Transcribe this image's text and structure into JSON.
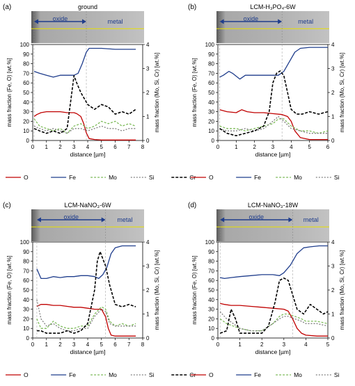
{
  "figure": {
    "micro_labels": {
      "oxide": "oxide",
      "metal": "metal"
    },
    "xlabel": "distance [µm]",
    "ylabel_left": "mass fraction (Fe, O) [wt.%]",
    "ylabel_right": "mass fraction (Mo, Si, Cr) [wt.%]",
    "legend": [
      {
        "name": "O",
        "color": "#c00000",
        "dash": "solid"
      },
      {
        "name": "Fe",
        "color": "#1f3d8c",
        "dash": "solid"
      },
      {
        "name": "Mo",
        "color": "#7dbb5a",
        "dash": "dashed"
      },
      {
        "name": "Si",
        "color": "#7f7f7f",
        "dash": "dotted"
      },
      {
        "name": "Cr",
        "color": "#000000",
        "dash": "dashed-bold"
      }
    ]
  },
  "chart_data": [
    {
      "type": "line",
      "panel_label": "(a)",
      "title": "ground",
      "xlim": [
        0,
        8
      ],
      "xticks": [
        0,
        1,
        2,
        3,
        4,
        5,
        6,
        7,
        8
      ],
      "ylim": [
        0,
        100
      ],
      "yticks": [
        0,
        10,
        20,
        30,
        40,
        50,
        60,
        70,
        80,
        90,
        100
      ],
      "y2lim": [
        0,
        4
      ],
      "y2ticks": [
        0,
        1,
        2,
        3,
        4
      ],
      "oxide_range": [
        0.1,
        3.9
      ],
      "series": [
        {
          "name": "O",
          "axis": "left",
          "x": [
            0.1,
            0.3,
            0.6,
            1.0,
            1.5,
            2.0,
            2.5,
            3.0,
            3.2,
            3.5,
            3.7,
            3.9,
            4.1,
            4.5,
            5.0,
            6.0,
            7.0,
            7.5
          ],
          "y": [
            25,
            27,
            29,
            30,
            30,
            30,
            29,
            29,
            28,
            25,
            18,
            8,
            2,
            1,
            0.5,
            0.5,
            0.5,
            0.5
          ]
        },
        {
          "name": "Fe",
          "axis": "left",
          "x": [
            0.1,
            0.5,
            1.0,
            1.5,
            2.0,
            2.5,
            3.0,
            3.3,
            3.6,
            3.9,
            4.1,
            4.5,
            5.0,
            6.0,
            7.0,
            7.5
          ],
          "y": [
            72,
            70,
            68,
            66,
            68,
            68,
            68,
            70,
            80,
            92,
            96,
            96,
            96,
            95,
            95,
            95
          ]
        },
        {
          "name": "Mo",
          "axis": "right",
          "x": [
            0.1,
            0.5,
            1.0,
            1.5,
            2.0,
            2.5,
            3.0,
            3.5,
            4.0,
            4.5,
            5.0,
            5.5,
            6.0,
            6.5,
            7.0,
            7.5
          ],
          "y": [
            0.9,
            0.6,
            0.5,
            0.4,
            0.5,
            0.3,
            0.6,
            0.7,
            0.5,
            0.6,
            0.8,
            0.7,
            0.8,
            0.6,
            0.7,
            0.6
          ]
        },
        {
          "name": "Si",
          "axis": "right",
          "x": [
            0.1,
            0.5,
            1.0,
            1.5,
            2.0,
            2.5,
            3.0,
            3.5,
            4.0,
            4.5,
            5.0,
            5.5,
            6.0,
            6.5,
            7.0,
            7.5
          ],
          "y": [
            0.6,
            0.5,
            0.4,
            0.5,
            0.4,
            0.3,
            0.5,
            0.5,
            0.4,
            0.5,
            0.6,
            0.5,
            0.5,
            0.4,
            0.5,
            0.5
          ]
        },
        {
          "name": "Cr",
          "axis": "right",
          "x": [
            0.1,
            0.5,
            1.0,
            1.5,
            2.0,
            2.5,
            2.8,
            3.0,
            3.2,
            3.5,
            3.8,
            4.0,
            4.5,
            5.0,
            5.5,
            6.0,
            6.5,
            7.0,
            7.5
          ],
          "y": [
            0.5,
            0.4,
            0.3,
            0.4,
            0.3,
            0.5,
            1.8,
            2.7,
            2.4,
            2.0,
            1.7,
            1.5,
            1.3,
            1.5,
            1.4,
            1.1,
            1.2,
            1.1,
            1.3
          ]
        }
      ]
    },
    {
      "type": "line",
      "panel_label": "(b)",
      "title": "LCM-H₃PO₄-6W",
      "xlim": [
        0,
        6
      ],
      "xticks": [
        0,
        1,
        2,
        3,
        4,
        5,
        6
      ],
      "ylim": [
        0,
        100
      ],
      "yticks": [
        0,
        10,
        20,
        30,
        40,
        50,
        60,
        70,
        80,
        90,
        100
      ],
      "y2lim": [
        0,
        4
      ],
      "y2ticks": [
        0,
        1,
        2,
        3,
        4
      ],
      "oxide_range": [
        0.1,
        3.5
      ],
      "series": [
        {
          "name": "O",
          "axis": "left",
          "x": [
            0.1,
            0.5,
            1.0,
            1.3,
            1.6,
            2.0,
            2.5,
            3.0,
            3.5,
            3.8,
            4.0,
            4.2,
            4.5,
            5.0,
            5.5,
            6.0
          ],
          "y": [
            32,
            30,
            29,
            32,
            30,
            29,
            29,
            28,
            27,
            25,
            20,
            10,
            3,
            1,
            1,
            1
          ]
        },
        {
          "name": "Fe",
          "axis": "left",
          "x": [
            0.1,
            0.3,
            0.6,
            0.8,
            1.2,
            1.5,
            2.0,
            2.5,
            3.0,
            3.3,
            3.6,
            3.9,
            4.2,
            4.5,
            5.0,
            5.5,
            6.0
          ],
          "y": [
            66,
            68,
            72,
            70,
            64,
            68,
            68,
            68,
            68,
            68,
            72,
            82,
            92,
            96,
            97,
            97,
            97
          ]
        },
        {
          "name": "Mo",
          "axis": "right",
          "x": [
            0.1,
            0.5,
            1.0,
            1.5,
            2.0,
            2.5,
            3.0,
            3.3,
            3.6,
            4.0,
            4.5,
            5.0,
            5.5,
            6.0
          ],
          "y": [
            0.6,
            0.5,
            0.5,
            0.4,
            0.5,
            0.6,
            0.7,
            0.9,
            0.9,
            0.6,
            0.4,
            0.4,
            0.3,
            0.4
          ]
        },
        {
          "name": "Si",
          "axis": "right",
          "x": [
            0.1,
            0.5,
            1.0,
            1.5,
            2.0,
            2.5,
            3.0,
            3.3,
            3.6,
            4.0,
            4.5,
            5.0,
            5.5,
            6.0
          ],
          "y": [
            0.5,
            0.4,
            0.4,
            0.5,
            0.4,
            0.5,
            0.8,
            1.0,
            0.8,
            0.5,
            0.4,
            0.3,
            0.3,
            0.3
          ]
        },
        {
          "name": "Cr",
          "axis": "right",
          "x": [
            0.1,
            0.5,
            1.0,
            1.5,
            2.0,
            2.5,
            2.8,
            3.0,
            3.2,
            3.4,
            3.6,
            3.8,
            4.0,
            4.3,
            4.6,
            5.0,
            5.5,
            6.0
          ],
          "y": [
            0.5,
            0.3,
            0.2,
            0.3,
            0.4,
            0.6,
            1.2,
            2.4,
            2.8,
            2.9,
            2.7,
            2.0,
            1.3,
            1.1,
            1.1,
            1.2,
            1.1,
            1.2
          ]
        }
      ]
    },
    {
      "type": "line",
      "panel_label": "(c)",
      "title": "LCM-NaNO₃-6W",
      "xlim": [
        0,
        8
      ],
      "xticks": [
        0,
        1,
        2,
        3,
        4,
        5,
        6,
        7,
        8
      ],
      "ylim": [
        0,
        100
      ],
      "yticks": [
        0,
        10,
        20,
        30,
        40,
        50,
        60,
        70,
        80,
        90,
        100
      ],
      "y2lim": [
        0,
        4
      ],
      "y2ticks": [
        0,
        1,
        2,
        3,
        4
      ],
      "oxide_range": [
        0.3,
        5.3
      ],
      "series": [
        {
          "name": "O",
          "axis": "left",
          "x": [
            0.3,
            0.6,
            1.0,
            1.5,
            2.0,
            2.5,
            3.0,
            3.5,
            4.0,
            4.5,
            5.0,
            5.3,
            5.5,
            5.7,
            6.0,
            6.5,
            7.0,
            7.5
          ],
          "y": [
            33,
            35,
            35,
            34,
            34,
            33,
            32,
            32,
            31,
            30,
            30,
            22,
            10,
            3,
            2,
            2,
            2,
            2
          ]
        },
        {
          "name": "Fe",
          "axis": "left",
          "x": [
            0.3,
            0.6,
            1.0,
            1.5,
            2.0,
            2.5,
            3.0,
            3.5,
            4.0,
            4.5,
            4.8,
            5.1,
            5.4,
            5.7,
            6.0,
            6.5,
            7.0,
            7.5
          ],
          "y": [
            72,
            62,
            62,
            64,
            63,
            64,
            64,
            65,
            65,
            64,
            62,
            66,
            74,
            88,
            94,
            96,
            96,
            96
          ]
        },
        {
          "name": "Mo",
          "axis": "right",
          "x": [
            0.3,
            0.6,
            1.0,
            1.5,
            2.0,
            2.5,
            3.0,
            3.5,
            4.0,
            4.5,
            5.0,
            5.3,
            5.6,
            6.0,
            6.5,
            7.0,
            7.5
          ],
          "y": [
            0.8,
            0.4,
            0.4,
            0.7,
            0.5,
            0.4,
            0.4,
            0.5,
            0.5,
            1.0,
            1.3,
            1.2,
            0.7,
            0.5,
            0.6,
            0.5,
            0.6
          ]
        },
        {
          "name": "Si",
          "axis": "right",
          "x": [
            0.3,
            0.6,
            1.0,
            1.5,
            2.0,
            2.5,
            3.0,
            3.5,
            4.0,
            4.5,
            5.0,
            5.3,
            5.6,
            6.0,
            6.5,
            7.0,
            7.5
          ],
          "y": [
            1.6,
            0.8,
            0.5,
            0.6,
            0.4,
            0.3,
            0.3,
            0.4,
            0.4,
            0.9,
            1.2,
            1.1,
            0.6,
            0.5,
            0.5,
            0.5,
            0.5
          ]
        },
        {
          "name": "Cr",
          "axis": "right",
          "x": [
            0.3,
            0.6,
            1.0,
            1.5,
            2.0,
            2.5,
            3.0,
            3.5,
            4.0,
            4.5,
            4.7,
            4.9,
            5.1,
            5.3,
            5.6,
            6.0,
            6.5,
            7.0,
            7.5
          ],
          "y": [
            0.3,
            0.3,
            0.2,
            0.2,
            0.2,
            0.3,
            0.2,
            0.3,
            0.6,
            2.0,
            3.2,
            3.6,
            3.3,
            3.0,
            2.2,
            1.4,
            1.3,
            1.4,
            1.3
          ]
        }
      ]
    },
    {
      "type": "line",
      "panel_label": "(d)",
      "title": "LCM-NaNO₃-18W",
      "xlim": [
        0,
        5
      ],
      "xticks": [
        0,
        1,
        2,
        3,
        4,
        5
      ],
      "ylim": [
        0,
        100
      ],
      "yticks": [
        0,
        10,
        20,
        30,
        40,
        50,
        60,
        70,
        80,
        90,
        100
      ],
      "y2lim": [
        0,
        4
      ],
      "y2ticks": [
        0,
        1,
        2,
        3,
        4
      ],
      "oxide_range": [
        0.1,
        3.4
      ],
      "series": [
        {
          "name": "O",
          "axis": "left",
          "x": [
            0.1,
            0.3,
            0.6,
            1.0,
            1.5,
            2.0,
            2.5,
            3.0,
            3.2,
            3.4,
            3.6,
            3.8,
            4.0,
            4.5,
            5.0
          ],
          "y": [
            36,
            35,
            34,
            34,
            33,
            32,
            31,
            30,
            28,
            20,
            10,
            5,
            3,
            2,
            2
          ]
        },
        {
          "name": "Fe",
          "axis": "left",
          "x": [
            0.1,
            0.3,
            0.6,
            1.0,
            1.5,
            2.0,
            2.5,
            2.8,
            3.0,
            3.3,
            3.6,
            3.9,
            4.2,
            4.6,
            5.0
          ],
          "y": [
            63,
            62,
            63,
            64,
            65,
            66,
            66,
            65,
            68,
            76,
            88,
            94,
            95,
            96,
            96
          ]
        },
        {
          "name": "Mo",
          "axis": "right",
          "x": [
            0.1,
            0.4,
            0.7,
            1.0,
            1.5,
            2.0,
            2.5,
            2.8,
            3.0,
            3.2,
            3.5,
            3.8,
            4.0,
            4.5,
            5.0
          ],
          "y": [
            0.8,
            0.6,
            0.5,
            0.4,
            0.3,
            0.3,
            0.6,
            0.9,
            1.0,
            1.0,
            0.9,
            0.8,
            0.7,
            0.7,
            0.6
          ]
        },
        {
          "name": "Si",
          "axis": "right",
          "x": [
            0.1,
            0.4,
            0.7,
            1.0,
            1.5,
            2.0,
            2.5,
            2.8,
            3.0,
            3.2,
            3.5,
            3.8,
            4.0,
            4.5,
            5.0
          ],
          "y": [
            1.1,
            0.8,
            0.6,
            0.4,
            0.3,
            0.3,
            0.6,
            0.8,
            0.9,
            0.9,
            0.8,
            0.7,
            0.6,
            0.6,
            0.5
          ]
        },
        {
          "name": "Cr",
          "axis": "right",
          "x": [
            0.1,
            0.4,
            0.6,
            0.8,
            1.0,
            1.5,
            2.0,
            2.3,
            2.6,
            2.8,
            3.0,
            3.2,
            3.4,
            3.6,
            3.9,
            4.2,
            4.5,
            4.8,
            5.0
          ],
          "y": [
            0.2,
            0.3,
            1.2,
            0.8,
            0.2,
            0.2,
            0.2,
            0.5,
            1.5,
            2.4,
            2.5,
            2.4,
            1.8,
            1.2,
            1.0,
            1.4,
            1.2,
            1.0,
            1.1
          ]
        }
      ]
    }
  ]
}
